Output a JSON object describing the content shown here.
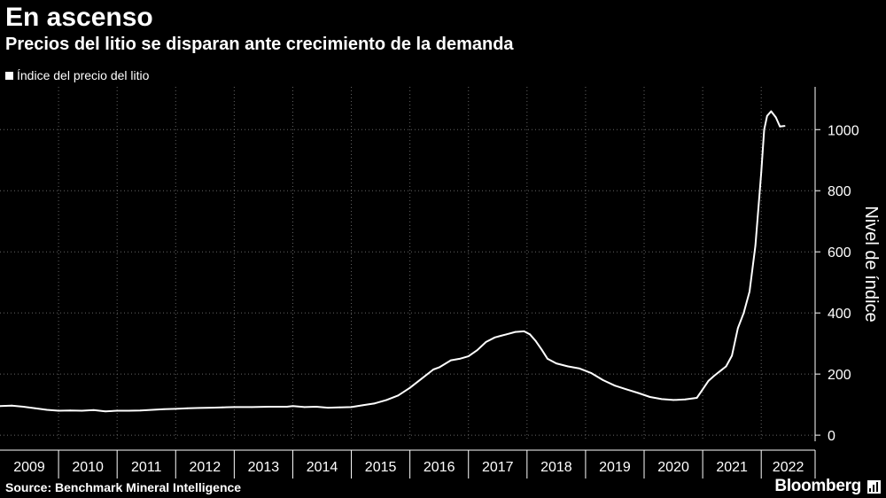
{
  "header": {
    "title": "En ascenso",
    "subtitle": "Precios del litio se disparan ante crecimiento de la demanda"
  },
  "legend": {
    "label": "Índice del precio del litio"
  },
  "footer": {
    "source": "Source: Benchmark Mineral Intelligence",
    "brand": "Bloomberg"
  },
  "colors": {
    "background": "#000000",
    "line": "#ffffff",
    "axis": "#ffffff"
  },
  "chart_data": {
    "type": "line",
    "title": "En ascenso",
    "subtitle": "Precios del litio se disparan ante crecimiento de la demanda",
    "xlabel": "",
    "ylabel": "Nivel de índice",
    "xlim": [
      2009.0,
      2022.92
    ],
    "ylim": [
      -20,
      1140
    ],
    "yticks": [
      0,
      200,
      400,
      600,
      800,
      1000
    ],
    "ytick_labels": [
      "0",
      "200",
      "400",
      "600",
      "800",
      "1000"
    ],
    "xtick_labels": [
      "2009",
      "2010",
      "2011",
      "2012",
      "2013",
      "2014",
      "2015",
      "2016",
      "2017",
      "2018",
      "2019",
      "2020",
      "2021",
      "2022"
    ],
    "grid": true,
    "legend_position": "top-left",
    "series": [
      {
        "name": "Índice del precio del litio",
        "x": [
          2009.0,
          2009.2,
          2009.4,
          2009.6,
          2009.8,
          2010.0,
          2010.2,
          2010.4,
          2010.6,
          2010.8,
          2011.0,
          2011.2,
          2011.4,
          2011.6,
          2011.8,
          2012.0,
          2012.2,
          2012.4,
          2012.6,
          2012.8,
          2013.0,
          2013.3,
          2013.6,
          2013.9,
          2014.0,
          2014.2,
          2014.4,
          2014.6,
          2014.8,
          2015.0,
          2015.2,
          2015.4,
          2015.6,
          2015.8,
          2016.0,
          2016.2,
          2016.4,
          2016.5,
          2016.7,
          2016.85,
          2017.0,
          2017.15,
          2017.3,
          2017.45,
          2017.55,
          2017.65,
          2017.8,
          2017.95,
          2018.05,
          2018.15,
          2018.25,
          2018.35,
          2018.5,
          2018.7,
          2018.9,
          2019.1,
          2019.3,
          2019.5,
          2019.7,
          2019.9,
          2020.1,
          2020.3,
          2020.5,
          2020.7,
          2020.9,
          2021.0,
          2021.1,
          2021.2,
          2021.3,
          2021.4,
          2021.5,
          2021.6,
          2021.7,
          2021.8,
          2021.9,
          2022.0,
          2022.05,
          2022.1,
          2022.17,
          2022.25,
          2022.32,
          2022.4
        ],
        "values": [
          95,
          97,
          93,
          88,
          83,
          80,
          81,
          80,
          82,
          78,
          80,
          80,
          81,
          83,
          85,
          86,
          88,
          89,
          90,
          91,
          92,
          92,
          93,
          93,
          95,
          92,
          93,
          90,
          91,
          92,
          98,
          104,
          115,
          130,
          155,
          185,
          215,
          222,
          245,
          250,
          258,
          278,
          305,
          320,
          325,
          330,
          338,
          340,
          330,
          308,
          280,
          250,
          235,
          225,
          218,
          203,
          180,
          162,
          150,
          138,
          125,
          118,
          115,
          117,
          122,
          150,
          178,
          195,
          210,
          225,
          260,
          350,
          400,
          470,
          620,
          860,
          1000,
          1045,
          1060,
          1040,
          1010,
          1012
        ]
      }
    ]
  }
}
